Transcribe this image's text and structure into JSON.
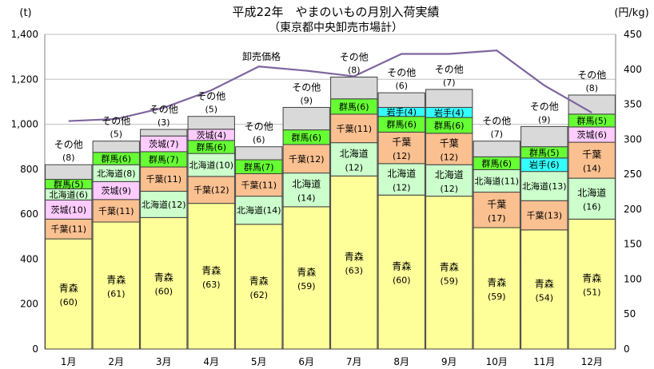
{
  "chart_data": {
    "type": "bar",
    "title": "平成22年　やまのいもの月別入荷実績",
    "subtitle": "（東京都中央卸売市場計）",
    "left_unit": "(t)",
    "right_unit": "(円/kg)",
    "categories": [
      "1月",
      "2月",
      "3月",
      "4月",
      "5月",
      "6月",
      "7月",
      "8月",
      "9月",
      "10月",
      "11月",
      "12月"
    ],
    "y_left": {
      "min": 0,
      "max": 1400,
      "ticks": [
        "0",
        "200",
        "400",
        "600",
        "800",
        "1,000",
        "1,200",
        "1,400"
      ]
    },
    "y_right": {
      "min": 0,
      "max": 450,
      "ticks": [
        "0",
        "50",
        "100",
        "150",
        "200",
        "250",
        "300",
        "350",
        "400",
        "450"
      ]
    },
    "colors": {
      "青森": "#ffff99",
      "千葉": "#fac090",
      "北海道": "#ccffcc",
      "茨城": "#ffccff",
      "群馬": "#66ff33",
      "岩手": "#33ffff",
      "その他": "#d9d9d9",
      "line": "#7e659f"
    },
    "months": [
      {
        "segments": [
          {
            "name": "青森",
            "value": 490,
            "label": "青森",
            "pct": "(60)"
          },
          {
            "name": "千葉",
            "value": 88,
            "label": "千葉",
            "pct": "(11)"
          },
          {
            "name": "茨城",
            "value": 85,
            "label": "茨城",
            "pct": "(10)"
          },
          {
            "name": "北海道",
            "value": 50,
            "label": "北海道",
            "pct": "(6)"
          },
          {
            "name": "群馬",
            "value": 42,
            "label": "群馬",
            "pct": "(5)"
          },
          {
            "name": "その他",
            "value": 65,
            "label": "その他",
            "pct": "(8)"
          }
        ],
        "total": 820
      },
      {
        "segments": [
          {
            "name": "青森",
            "value": 565,
            "label": "青森",
            "pct": "(61)"
          },
          {
            "name": "千葉",
            "value": 100,
            "label": "千葉",
            "pct": "(11)"
          },
          {
            "name": "茨城",
            "value": 80,
            "label": "茨城",
            "pct": "(9)"
          },
          {
            "name": "北海道",
            "value": 75,
            "label": "北海道",
            "pct": "(8)"
          },
          {
            "name": "群馬",
            "value": 55,
            "label": "群馬",
            "pct": "(6)"
          },
          {
            "name": "その他",
            "value": 50,
            "label": "その他",
            "pct": "(5)"
          }
        ],
        "total": 925
      },
      {
        "segments": [
          {
            "name": "青森",
            "value": 585,
            "label": "青森",
            "pct": "(60)"
          },
          {
            "name": "北海道",
            "value": 117,
            "label": "北海道",
            "pct": "(12)"
          },
          {
            "name": "千葉",
            "value": 108,
            "label": "千葉",
            "pct": "(11)"
          },
          {
            "name": "群馬",
            "value": 68,
            "label": "群馬",
            "pct": "(7)"
          },
          {
            "name": "茨城",
            "value": 70,
            "label": "茨城",
            "pct": "(7)"
          },
          {
            "name": "その他",
            "value": 29,
            "label": "その他",
            "pct": "(3)"
          }
        ],
        "total": 977
      },
      {
        "segments": [
          {
            "name": "青森",
            "value": 648,
            "label": "青森",
            "pct": "(63)"
          },
          {
            "name": "千葉",
            "value": 120,
            "label": "千葉",
            "pct": "(12)"
          },
          {
            "name": "北海道",
            "value": 102,
            "label": "北海道",
            "pct": "(10)"
          },
          {
            "name": "群馬",
            "value": 58,
            "label": "群馬",
            "pct": "(6)"
          },
          {
            "name": "茨城",
            "value": 50,
            "label": "茨城",
            "pct": "(4)"
          },
          {
            "name": "その他",
            "value": 57,
            "label": "その他",
            "pct": "(5)"
          }
        ],
        "total": 1035
      },
      {
        "segments": [
          {
            "name": "青森",
            "value": 555,
            "label": "青森",
            "pct": "(62)"
          },
          {
            "name": "北海道",
            "value": 125,
            "label": "北海道",
            "pct": "(14)"
          },
          {
            "name": "千葉",
            "value": 100,
            "label": "千葉",
            "pct": "(11)"
          },
          {
            "name": "群馬",
            "value": 62,
            "label": "群馬",
            "pct": "(7)"
          },
          {
            "name": "その他",
            "value": 58,
            "label": "その他",
            "pct": "(6)"
          }
        ],
        "total": 900
      },
      {
        "segments": [
          {
            "name": "青森",
            "value": 633,
            "label": "青森",
            "pct": "(59)"
          },
          {
            "name": "北海道",
            "value": 150,
            "label": "北海道",
            "pct": "(14)"
          },
          {
            "name": "千葉",
            "value": 127,
            "label": "千葉",
            "pct": "(12)"
          },
          {
            "name": "群馬",
            "value": 65,
            "label": "群馬",
            "pct": "(6)"
          },
          {
            "name": "その他",
            "value": 100,
            "label": "その他",
            "pct": "(9)"
          }
        ],
        "total": 1075
      },
      {
        "segments": [
          {
            "name": "青森",
            "value": 770,
            "label": "青森",
            "pct": "(63)"
          },
          {
            "name": "北海道",
            "value": 148,
            "label": "北海道",
            "pct": "(12)"
          },
          {
            "name": "千葉",
            "value": 127,
            "label": "千葉",
            "pct": "(11)"
          },
          {
            "name": "群馬",
            "value": 68,
            "label": "群馬",
            "pct": "(6)"
          },
          {
            "name": "その他",
            "value": 97,
            "label": "その他",
            "pct": "(8)"
          }
        ],
        "total": 1210
      },
      {
        "segments": [
          {
            "name": "青森",
            "value": 685,
            "label": "青森",
            "pct": "(60)"
          },
          {
            "name": "北海道",
            "value": 140,
            "label": "北海道",
            "pct": "(12)"
          },
          {
            "name": "千葉",
            "value": 140,
            "label": "千葉",
            "pct": "(12)"
          },
          {
            "name": "群馬",
            "value": 70,
            "label": "群馬",
            "pct": "(6)"
          },
          {
            "name": "岩手",
            "value": 40,
            "label": "岩手",
            "pct": "(4)"
          },
          {
            "name": "その他",
            "value": 65,
            "label": "その他",
            "pct": "(6)"
          }
        ],
        "total": 1140
      },
      {
        "segments": [
          {
            "name": "青森",
            "value": 680,
            "label": "青森",
            "pct": "(59)"
          },
          {
            "name": "北海道",
            "value": 140,
            "label": "北海道",
            "pct": "(12)"
          },
          {
            "name": "千葉",
            "value": 140,
            "label": "千葉",
            "pct": "(12)"
          },
          {
            "name": "群馬",
            "value": 70,
            "label": "群馬",
            "pct": "(6)"
          },
          {
            "name": "岩手",
            "value": 45,
            "label": "岩手",
            "pct": "(4)"
          },
          {
            "name": "その他",
            "value": 80,
            "label": "その他",
            "pct": "(7)"
          }
        ],
        "total": 1155
      },
      {
        "segments": [
          {
            "name": "青森",
            "value": 540,
            "label": "青森",
            "pct": "(59)"
          },
          {
            "name": "千葉",
            "value": 158,
            "label": "千葉",
            "pct": "(17)"
          },
          {
            "name": "北海道",
            "value": 100,
            "label": "北海道",
            "pct": "(11)"
          },
          {
            "name": "群馬",
            "value": 57,
            "label": "群馬",
            "pct": "(6)"
          },
          {
            "name": "その他",
            "value": 70,
            "label": "その他",
            "pct": "(7)"
          }
        ],
        "total": 925
      },
      {
        "segments": [
          {
            "name": "青森",
            "value": 530,
            "label": "青森",
            "pct": "(54)"
          },
          {
            "name": "千葉",
            "value": 130,
            "label": "千葉",
            "pct": "(13)"
          },
          {
            "name": "北海道",
            "value": 130,
            "label": "北海道",
            "pct": "(13)"
          },
          {
            "name": "岩手",
            "value": 60,
            "label": "岩手",
            "pct": "(6)"
          },
          {
            "name": "群馬",
            "value": 50,
            "label": "群馬",
            "pct": "(5)"
          },
          {
            "name": "その他",
            "value": 90,
            "label": "その他",
            "pct": "(9)"
          }
        ],
        "total": 990
      },
      {
        "segments": [
          {
            "name": "青森",
            "value": 578,
            "label": "青森",
            "pct": "(51)"
          },
          {
            "name": "北海道",
            "value": 182,
            "label": "北海道",
            "pct": "(16)"
          },
          {
            "name": "千葉",
            "value": 160,
            "label": "千葉",
            "pct": "(14)"
          },
          {
            "name": "茨城",
            "value": 68,
            "label": "茨城",
            "pct": "(6)"
          },
          {
            "name": "群馬",
            "value": 57,
            "label": "群馬",
            "pct": "(5)"
          },
          {
            "name": "その他",
            "value": 85,
            "label": "その他",
            "pct": "(8)"
          }
        ],
        "total": 1130
      }
    ],
    "line": {
      "name": "卸売価格",
      "axis": "right",
      "values": [
        326,
        329,
        345,
        370,
        404,
        398,
        390,
        422,
        422,
        427,
        377,
        338
      ]
    }
  }
}
